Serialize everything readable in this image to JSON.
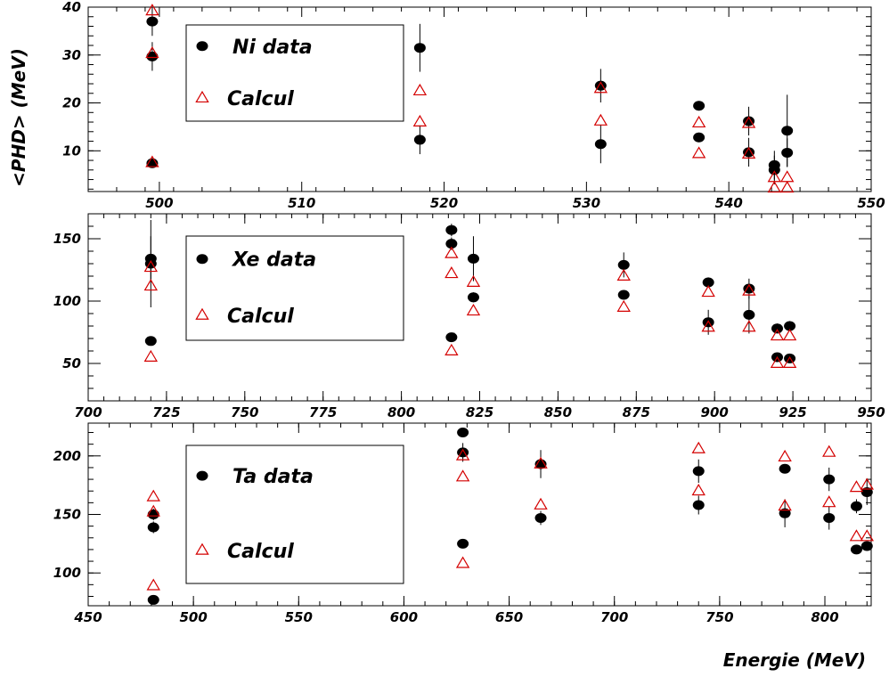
{
  "figure": {
    "ylabel": "<PHD> (MeV)",
    "xlabel": "Energie (MeV)"
  },
  "colors": {
    "data": "#000000",
    "calcul": "#d40000"
  },
  "chart_data": [
    {
      "type": "scatter",
      "xlim": [
        495,
        550
      ],
      "ylim": [
        1.5,
        40
      ],
      "xticks": [
        500,
        510,
        520,
        530,
        540,
        550
      ],
      "yticks": [
        10,
        20,
        30,
        40
      ],
      "legend": {
        "placement": "top-left",
        "data_label": "Ni data",
        "calcul_label": "Calcul"
      },
      "series": [
        {
          "name": "Ni data",
          "marker": "filled-circle",
          "points": [
            [
              499.5,
              37.0,
              3.0
            ],
            [
              499.5,
              29.7,
              3.0
            ],
            [
              499.5,
              7.4,
              0.6
            ],
            [
              518.3,
              31.5,
              5.0
            ],
            [
              518.3,
              12.3,
              3.0
            ],
            [
              531.0,
              23.6,
              3.5
            ],
            [
              531.0,
              11.4,
              4.0
            ],
            [
              537.9,
              19.4,
              1.0
            ],
            [
              537.9,
              12.8,
              1.0
            ],
            [
              541.4,
              16.2,
              3.0
            ],
            [
              541.4,
              9.7,
              3.0
            ],
            [
              543.2,
              7.0,
              3.0
            ],
            [
              543.2,
              6.0,
              3.0
            ],
            [
              544.1,
              14.2,
              7.5
            ],
            [
              544.1,
              9.6,
              3.0
            ]
          ]
        },
        {
          "name": "Calcul",
          "marker": "open-triangle",
          "points": [
            [
              499.5,
              39.2
            ],
            [
              499.5,
              30.3
            ],
            [
              499.5,
              7.5
            ],
            [
              518.3,
              22.5
            ],
            [
              518.3,
              16.0
            ],
            [
              531.0,
              23.0
            ],
            [
              531.0,
              16.2
            ],
            [
              537.9,
              15.8
            ],
            [
              537.9,
              9.4
            ],
            [
              541.4,
              15.7
            ],
            [
              541.4,
              9.3
            ],
            [
              543.2,
              4.4
            ],
            [
              543.2,
              2.2
            ],
            [
              544.1,
              4.4
            ],
            [
              544.1,
              2.2
            ]
          ]
        }
      ]
    },
    {
      "type": "scatter",
      "xlim": [
        700,
        950
      ],
      "ylim": [
        20,
        170
      ],
      "xticks": [
        700,
        725,
        750,
        775,
        800,
        825,
        850,
        875,
        900,
        925,
        950
      ],
      "yticks": [
        50,
        100,
        150
      ],
      "legend": {
        "placement": "top-left",
        "data_label": "Xe data",
        "calcul_label": "Calcul"
      },
      "series": [
        {
          "name": "Xe data",
          "marker": "filled-circle",
          "points": [
            [
              720,
              134,
              18
            ],
            [
              720,
              130,
              35
            ],
            [
              720,
              68,
              2
            ],
            [
              816,
              157,
              5
            ],
            [
              816,
              146,
              5
            ],
            [
              816,
              71,
              2
            ],
            [
              823,
              134,
              18
            ],
            [
              823,
              103,
              4
            ],
            [
              871,
              129,
              10
            ],
            [
              871,
              105,
              3
            ],
            [
              898,
              115,
              4
            ],
            [
              898,
              83,
              10
            ],
            [
              911,
              110,
              8
            ],
            [
              911,
              89,
              15
            ],
            [
              920,
              78,
              4
            ],
            [
              920,
              55,
              3
            ],
            [
              924,
              80,
              4
            ],
            [
              924,
              54,
              3
            ]
          ]
        },
        {
          "name": "Calcul",
          "marker": "open-triangle",
          "points": [
            [
              720,
              127
            ],
            [
              720,
              112
            ],
            [
              720,
              55
            ],
            [
              816,
              138
            ],
            [
              816,
              122
            ],
            [
              816,
              60
            ],
            [
              823,
              115
            ],
            [
              823,
              92
            ],
            [
              871,
              120
            ],
            [
              871,
              95
            ],
            [
              898,
              107
            ],
            [
              898,
              79
            ],
            [
              911,
              108
            ],
            [
              911,
              79
            ],
            [
              920,
              72
            ],
            [
              920,
              50
            ],
            [
              924,
              72
            ],
            [
              924,
              50
            ]
          ]
        }
      ]
    },
    {
      "type": "scatter",
      "xlim": [
        450,
        822
      ],
      "ylim": [
        72,
        228
      ],
      "xticks": [
        450,
        500,
        550,
        600,
        650,
        700,
        750,
        800
      ],
      "yticks": [
        100,
        150,
        200
      ],
      "legend": {
        "placement": "top-left",
        "data_label": "Ta data",
        "calcul_label": "Calcul"
      },
      "series": [
        {
          "name": "Ta data",
          "marker": "filled-circle",
          "points": [
            [
              481,
              150,
              5
            ],
            [
              481,
              139,
              5
            ],
            [
              481,
              77,
              2
            ],
            [
              628,
              220,
              4
            ],
            [
              628,
              203,
              8
            ],
            [
              628,
              125,
              3
            ],
            [
              665,
              193,
              12
            ],
            [
              665,
              147,
              6
            ],
            [
              740,
              187,
              10
            ],
            [
              740,
              158,
              8
            ],
            [
              781,
              189,
              4
            ],
            [
              781,
              151,
              12
            ],
            [
              802,
              180,
              10
            ],
            [
              802,
              147,
              10
            ],
            [
              815,
              157,
              6
            ],
            [
              815,
              120,
              3
            ],
            [
              820,
              169,
              11
            ],
            [
              820,
              123,
              3
            ]
          ]
        },
        {
          "name": "Calcul",
          "marker": "open-triangle",
          "points": [
            [
              481,
              165
            ],
            [
              481,
              152
            ],
            [
              481,
              89
            ],
            [
              628,
              200
            ],
            [
              628,
              182
            ],
            [
              628,
              108
            ],
            [
              665,
              193
            ],
            [
              665,
              158
            ],
            [
              740,
              206
            ],
            [
              740,
              170
            ],
            [
              781,
              199
            ],
            [
              781,
              157
            ],
            [
              802,
              203
            ],
            [
              802,
              160
            ],
            [
              815,
              173
            ],
            [
              815,
              131
            ],
            [
              820,
              175
            ],
            [
              820,
              131
            ]
          ]
        }
      ]
    }
  ]
}
